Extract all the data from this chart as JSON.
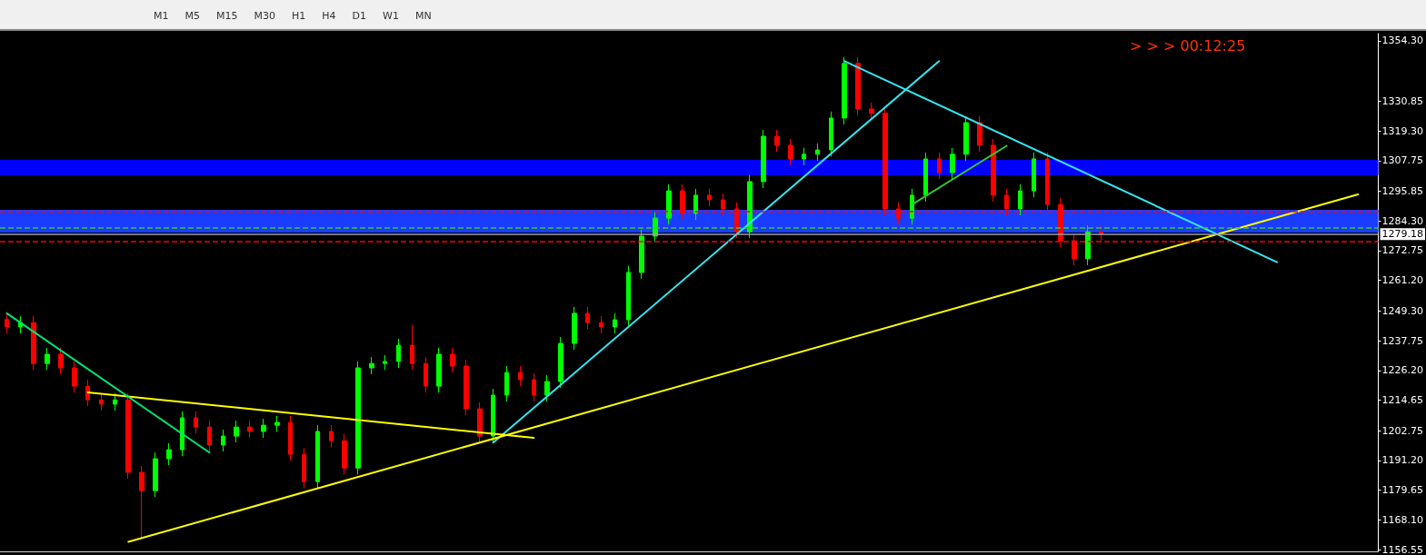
{
  "chart_data": {
    "type": "candlestick",
    "annotations": [
      "> > > 00:12:25",
      "M1",
      "M5",
      "M15",
      "M30",
      "H1",
      "H4",
      "D1",
      "W1",
      "MN"
    ],
    "categories": [
      null,
      null,
      null,
      null,
      null,
      null,
      null,
      null,
      null,
      null,
      null,
      null,
      null,
      null,
      null,
      null,
      null,
      null,
      null,
      null,
      null,
      null,
      null,
      null,
      null,
      null,
      null,
      null,
      null,
      null,
      null,
      null,
      null,
      null,
      null,
      null,
      null,
      null,
      null,
      null,
      null,
      null,
      null,
      null,
      null,
      null,
      null,
      null,
      null,
      null,
      null,
      null,
      null,
      null,
      null,
      null,
      null,
      null,
      null,
      null,
      null,
      null,
      null,
      null,
      null,
      null,
      null,
      null,
      null,
      null,
      null,
      null,
      null,
      null,
      null,
      null,
      null,
      null,
      null,
      null,
      null,
      null,
      null,
      null,
      null,
      null,
      null,
      null,
      null,
      null,
      null,
      null,
      null,
      null,
      null,
      null,
      null,
      null,
      null,
      null,
      null,
      null
    ],
    "series": [
      {
        "ohlc": [
          [
            1246.0,
            1248.5,
            1240.6,
            1243.1
          ],
          [
            1243.1,
            1247.3,
            1240.6,
            1244.8
          ],
          [
            1244.8,
            1247.3,
            1226.4,
            1228.9
          ],
          [
            1228.9,
            1235.0,
            1226.4,
            1232.5
          ],
          [
            1232.5,
            1235.0,
            1224.7,
            1227.2
          ],
          [
            1227.2,
            1229.7,
            1217.6,
            1220.1
          ],
          [
            1220.1,
            1222.6,
            1212.3,
            1214.8
          ],
          [
            1214.8,
            1217.3,
            1210.6,
            1213.1
          ],
          [
            1213.1,
            1217.3,
            1210.6,
            1214.8
          ],
          [
            1214.8,
            1217.3,
            1184.1,
            1186.6
          ],
          [
            1186.6,
            1189.1,
            1160.8,
            1179.5
          ],
          [
            1179.5,
            1194.4,
            1177.0,
            1191.9
          ],
          [
            1191.9,
            1197.9,
            1189.4,
            1195.4
          ],
          [
            1195.4,
            1210.3,
            1192.9,
            1207.8
          ],
          [
            1207.8,
            1210.3,
            1201.7,
            1204.2
          ],
          [
            1204.2,
            1206.7,
            1194.7,
            1197.2
          ],
          [
            1197.2,
            1203.2,
            1194.7,
            1200.7
          ],
          [
            1200.7,
            1206.7,
            1198.2,
            1204.2
          ],
          [
            1204.2,
            1206.7,
            1200.0,
            1202.5
          ],
          [
            1202.5,
            1207.4,
            1200.0,
            1204.9
          ],
          [
            1204.9,
            1208.5,
            1202.4,
            1206.0
          ],
          [
            1206.0,
            1208.5,
            1191.1,
            1193.6
          ],
          [
            1193.6,
            1196.1,
            1180.5,
            1183.0
          ],
          [
            1183.0,
            1205.0,
            1180.5,
            1202.5
          ],
          [
            1202.5,
            1205.0,
            1196.4,
            1198.9
          ],
          [
            1198.9,
            1201.4,
            1185.8,
            1188.3
          ],
          [
            1188.3,
            1229.7,
            1185.8,
            1227.2
          ],
          [
            1227.2,
            1231.4,
            1224.7,
            1228.9
          ],
          [
            1228.9,
            1232.2,
            1226.4,
            1229.7
          ],
          [
            1229.7,
            1238.5,
            1227.2,
            1236.0
          ],
          [
            1236.0,
            1243.8,
            1226.4,
            1228.9
          ],
          [
            1228.9,
            1231.4,
            1217.6,
            1220.1
          ],
          [
            1220.1,
            1235.0,
            1217.6,
            1232.5
          ],
          [
            1232.5,
            1235.0,
            1225.4,
            1227.9
          ],
          [
            1227.9,
            1230.4,
            1208.8,
            1211.3
          ],
          [
            1211.3,
            1213.8,
            1198.2,
            1200.7
          ],
          [
            1200.7,
            1219.1,
            1198.2,
            1216.6
          ],
          [
            1216.6,
            1227.9,
            1214.1,
            1225.4
          ],
          [
            1225.4,
            1227.9,
            1220.1,
            1222.6
          ],
          [
            1222.6,
            1225.1,
            1214.1,
            1216.6
          ],
          [
            1216.6,
            1224.4,
            1214.1,
            1221.9
          ],
          [
            1221.9,
            1239.2,
            1219.4,
            1236.7
          ],
          [
            1236.7,
            1250.9,
            1234.2,
            1248.4
          ],
          [
            1248.4,
            1250.9,
            1242.3,
            1244.8
          ],
          [
            1244.8,
            1247.3,
            1240.6,
            1243.1
          ],
          [
            1243.1,
            1248.4,
            1240.6,
            1245.9
          ],
          [
            1245.9,
            1266.8,
            1243.4,
            1264.3
          ],
          [
            1264.3,
            1280.9,
            1261.8,
            1278.4
          ],
          [
            1278.4,
            1287.9,
            1275.9,
            1285.4
          ],
          [
            1285.4,
            1298.5,
            1282.9,
            1296.0
          ],
          [
            1296.0,
            1298.5,
            1284.7,
            1287.2
          ],
          [
            1287.2,
            1296.8,
            1284.7,
            1294.3
          ],
          [
            1294.3,
            1296.8,
            1290.0,
            1292.5
          ],
          [
            1292.5,
            1295.0,
            1286.5,
            1289.0
          ],
          [
            1289.0,
            1291.5,
            1277.6,
            1280.1
          ],
          [
            1280.1,
            1302.1,
            1277.6,
            1299.6
          ],
          [
            1299.6,
            1319.7,
            1297.1,
            1317.2
          ],
          [
            1317.2,
            1319.7,
            1311.2,
            1313.7
          ],
          [
            1313.7,
            1316.2,
            1305.9,
            1308.4
          ],
          [
            1308.4,
            1312.7,
            1305.9,
            1310.2
          ],
          [
            1310.2,
            1314.4,
            1307.7,
            1311.9
          ],
          [
            1311.9,
            1326.8,
            1309.4,
            1324.3
          ],
          [
            1324.3,
            1348.0,
            1321.8,
            1345.5
          ],
          [
            1345.5,
            1348.0,
            1325.3,
            1327.8
          ],
          [
            1327.8,
            1330.3,
            1323.6,
            1326.1
          ],
          [
            1326.1,
            1328.6,
            1286.5,
            1289.0
          ],
          [
            1289.0,
            1291.5,
            1282.9,
            1285.4
          ],
          [
            1285.4,
            1296.8,
            1282.9,
            1294.3
          ],
          [
            1294.3,
            1310.9,
            1291.8,
            1308.4
          ],
          [
            1308.4,
            1310.9,
            1300.6,
            1303.1
          ],
          [
            1303.1,
            1312.7,
            1300.6,
            1310.2
          ],
          [
            1310.2,
            1325.0,
            1307.7,
            1322.5
          ],
          [
            1322.5,
            1325.0,
            1311.2,
            1313.7
          ],
          [
            1313.7,
            1316.2,
            1291.8,
            1294.3
          ],
          [
            1294.3,
            1296.8,
            1286.5,
            1289.0
          ],
          [
            1289.0,
            1298.5,
            1286.5,
            1296.0
          ],
          [
            1296.0,
            1310.9,
            1293.5,
            1308.4
          ],
          [
            1308.4,
            1310.9,
            1288.2,
            1290.7
          ],
          [
            1290.7,
            1293.2,
            1274.1,
            1276.6
          ],
          [
            1276.6,
            1279.1,
            1267.1,
            1269.6
          ],
          [
            1269.6,
            1282.6,
            1267.1,
            1280.1
          ],
          [
            1280.1,
            1282.6,
            1276.7,
            1279.18
          ],
          null,
          null,
          null,
          null,
          null,
          null,
          null,
          null,
          null,
          null,
          null,
          null,
          null,
          null,
          null,
          null,
          null,
          null,
          null,
          null
        ],
        "colors": [
          "#ff0000",
          "#00ff00",
          "#ff0000",
          "#00ff00",
          "#ff0000",
          "#ff0000",
          "#ff0000",
          "#ff0000",
          "#00ff00",
          "#ff0000",
          "#ff0000",
          "#00ff00",
          "#00ff00",
          "#00ff00",
          "#ff0000",
          "#ff0000",
          "#00ff00",
          "#00ff00",
          "#ff0000",
          "#00ff00",
          "#00ff00",
          "#ff0000",
          "#ff0000",
          "#00ff00",
          "#ff0000",
          "#ff0000",
          "#00ff00",
          "#00ff00",
          "#00ff00",
          "#00ff00",
          "#ff0000",
          "#ff0000",
          "#00ff00",
          "#ff0000",
          "#ff0000",
          "#ff0000",
          "#00ff00",
          "#00ff00",
          "#ff0000",
          "#ff0000",
          "#00ff00",
          "#00ff00",
          "#00ff00",
          "#ff0000",
          "#ff0000",
          "#00ff00",
          "#00ff00",
          "#00ff00",
          "#00ff00",
          "#00ff00",
          "#ff0000",
          "#00ff00",
          "#ff0000",
          "#ff0000",
          "#ff0000",
          "#00ff00",
          "#00ff00",
          "#ff0000",
          "#ff0000",
          "#00ff00",
          "#00ff00",
          "#00ff00",
          "#00ff00",
          "#ff0000",
          "#ff0000",
          "#ff0000",
          "#ff0000",
          "#00ff00",
          "#00ff00",
          "#ff0000",
          "#00ff00",
          "#00ff00",
          "#ff0000",
          "#ff0000",
          "#ff0000",
          "#00ff00",
          "#00ff00",
          "#ff0000",
          "#ff0000",
          "#ff0000",
          "#00ff00",
          "#ff0000",
          null,
          null,
          null,
          null,
          null,
          null,
          null,
          null,
          null,
          null,
          null,
          null,
          null,
          null,
          null,
          null,
          null,
          null,
          null,
          null
        ]
      },
      {
        "type": "line",
        "color": "#33e6f0",
        "values": [
          null,
          null,
          null,
          null,
          null,
          null,
          null,
          null,
          null,
          null,
          null,
          null,
          null,
          null,
          null,
          null,
          null,
          null,
          null,
          null,
          null,
          null,
          null,
          null,
          null,
          null,
          null,
          null,
          null,
          null,
          null,
          null,
          null,
          null,
          null,
          null,
          1198.2,
          null,
          null,
          null,
          null,
          null,
          null,
          null,
          null,
          null,
          null,
          null,
          null,
          null,
          null,
          null,
          null,
          null,
          null,
          null,
          null,
          null,
          null,
          null,
          null,
          null,
          null,
          null,
          null,
          null,
          null,
          null,
          null,
          1346.4,
          null,
          null,
          null,
          null,
          null,
          null,
          null,
          null,
          null,
          null,
          null,
          null,
          null,
          null,
          null,
          null,
          null,
          null,
          null,
          null,
          null,
          null,
          null,
          null,
          null,
          null,
          null,
          null,
          null,
          null,
          null,
          null
        ]
      },
      {
        "type": "line",
        "color": "#33e6f0",
        "values": [
          null,
          null,
          null,
          null,
          null,
          null,
          null,
          null,
          null,
          null,
          null,
          null,
          null,
          null,
          null,
          null,
          null,
          null,
          null,
          null,
          null,
          null,
          null,
          null,
          null,
          null,
          null,
          null,
          null,
          null,
          null,
          null,
          null,
          null,
          null,
          null,
          null,
          null,
          null,
          null,
          null,
          null,
          null,
          null,
          null,
          null,
          null,
          null,
          null,
          null,
          null,
          null,
          null,
          null,
          null,
          null,
          null,
          null,
          null,
          null,
          null,
          null,
          1346.4,
          null,
          null,
          null,
          null,
          null,
          null,
          null,
          null,
          null,
          null,
          null,
          null,
          null,
          null,
          null,
          null,
          null,
          null,
          null,
          null,
          null,
          null,
          null,
          null,
          null,
          null,
          null,
          null,
          null,
          null,
          null,
          1268.3,
          null,
          null,
          null,
          null,
          null,
          null,
          null
        ]
      },
      {
        "type": "line",
        "color": "#ffff00",
        "values": [
          null,
          null,
          null,
          null,
          null,
          null,
          null,
          null,
          null,
          1159.6,
          null,
          null,
          null,
          null,
          null,
          null,
          null,
          null,
          null,
          null,
          null,
          null,
          null,
          null,
          null,
          null,
          null,
          null,
          null,
          null,
          null,
          null,
          null,
          null,
          null,
          null,
          null,
          null,
          null,
          null,
          null,
          null,
          null,
          null,
          null,
          null,
          null,
          null,
          null,
          null,
          null,
          null,
          null,
          null,
          null,
          null,
          null,
          null,
          null,
          null,
          null,
          null,
          null,
          null,
          null,
          null,
          null,
          null,
          null,
          null,
          null,
          null,
          null,
          null,
          null,
          null,
          null,
          null,
          null,
          null,
          null,
          null,
          null,
          null,
          null,
          null,
          null,
          null,
          null,
          null,
          null,
          null,
          null,
          null,
          null,
          null,
          null,
          null,
          null,
          null,
          1294.6,
          null
        ]
      },
      {
        "type": "line",
        "color": "#ffff00",
        "values": [
          null,
          null,
          null,
          null,
          null,
          null,
          1217.7,
          null,
          null,
          null,
          null,
          null,
          null,
          null,
          null,
          null,
          null,
          null,
          null,
          null,
          null,
          null,
          null,
          null,
          null,
          null,
          null,
          null,
          null,
          null,
          null,
          null,
          null,
          null,
          null,
          null,
          null,
          null,
          null,
          1200.0,
          null,
          null,
          null,
          null,
          null,
          null,
          null,
          null,
          null,
          null,
          null,
          null,
          null,
          null,
          null,
          null,
          null,
          null,
          null,
          null,
          null,
          null,
          null,
          null,
          null,
          null,
          null,
          null,
          null,
          null,
          null,
          null,
          null,
          null,
          null,
          null,
          null,
          null,
          null,
          null,
          null,
          null,
          null,
          null,
          null,
          null,
          null,
          null,
          null,
          null,
          null,
          null,
          null,
          null,
          null,
          null,
          null,
          null,
          null,
          null,
          null,
          null
        ]
      },
      {
        "type": "line",
        "color": "#00e676",
        "values": [
          1248.4,
          null,
          null,
          null,
          null,
          null,
          null,
          null,
          null,
          null,
          null,
          null,
          null,
          null,
          null,
          1194.3,
          null,
          null,
          null,
          null,
          null,
          null,
          null,
          null,
          null,
          null,
          null,
          null,
          null,
          null,
          null,
          null,
          null,
          null,
          null,
          null,
          null,
          null,
          null,
          null,
          null,
          null,
          null,
          null,
          null,
          null,
          null,
          null,
          null,
          null,
          null,
          null,
          null,
          null,
          null,
          null,
          null,
          null,
          null,
          null,
          null,
          null,
          null,
          null,
          null,
          null,
          null,
          null,
          null,
          null,
          null,
          null,
          null,
          null,
          null,
          null,
          null,
          null,
          null,
          null,
          null,
          null,
          null,
          null,
          null,
          null,
          null,
          null,
          null,
          null,
          null,
          null,
          null,
          null,
          null,
          null,
          null,
          null,
          null,
          null,
          null,
          null
        ]
      },
      {
        "type": "line",
        "color": "#33cc33",
        "values": [
          null,
          null,
          null,
          null,
          null,
          null,
          null,
          null,
          null,
          null,
          null,
          null,
          null,
          null,
          null,
          null,
          null,
          null,
          null,
          null,
          null,
          null,
          null,
          null,
          null,
          null,
          null,
          null,
          null,
          null,
          null,
          null,
          null,
          null,
          null,
          null,
          null,
          null,
          null,
          null,
          null,
          null,
          null,
          null,
          null,
          null,
          null,
          null,
          null,
          null,
          null,
          null,
          null,
          null,
          null,
          null,
          null,
          null,
          null,
          null,
          null,
          null,
          null,
          null,
          null,
          null,
          null,
          1290.7,
          null,
          null,
          null,
          null,
          null,
          null,
          1313.5,
          null,
          null,
          null,
          null,
          null,
          null,
          null,
          null,
          null,
          null,
          null,
          null,
          null,
          null,
          null,
          null,
          null,
          null,
          null,
          null,
          null,
          null,
          null,
          null,
          null,
          null,
          null
        ]
      }
    ],
    "ylim": [
      1155.9,
      1357.1
    ],
    "yticks": [
      1156.55,
      {
        "value": 1168.1,
        "label": "1168.10"
      },
      1179.65,
      {
        "value": 1191.2,
        "label": "1191.20"
      },
      1202.75,
      1214.65,
      {
        "value": 1226.2,
        "label": "1226.20"
      },
      1237.75,
      {
        "value": 1249.3,
        "label": "1249.30"
      },
      {
        "value": 1261.2,
        "label": "1261.20"
      },
      1272.75,
      {
        "value": 1284.3,
        "label": "1284.30"
      },
      1295.85,
      1307.75,
      {
        "value": 1319.3,
        "label": "1319.30"
      },
      1330.85,
      {
        "value": 1354.3,
        "label": "1354.30"
      }
    ],
    "tick_labels": "y",
    "marker": "none",
    "line_style": "solid",
    "ref_lines": [
      {
        "axis": "y",
        "value": 1287.9,
        "color": "#ff0000",
        "line_style": "dashed"
      },
      {
        "axis": "y",
        "value": 1281.6,
        "color": "#33cc33",
        "line_style": "dashed"
      },
      {
        "axis": "y",
        "value": 1279.18,
        "label": "1279.18",
        "color": "#a0a0a0",
        "line_style": "solid"
      },
      {
        "axis": "y",
        "value": 1276.3,
        "color": "#ff0000",
        "line_style": "dashed"
      }
    ],
    "bands": [
      {
        "axis": "y",
        "from": 1302.0,
        "to": 1308.0,
        "color": "#0000ff"
      },
      {
        "axis": "y",
        "from": 1279.8,
        "to": 1288.6,
        "color": "#1a3cff"
      }
    ]
  }
}
